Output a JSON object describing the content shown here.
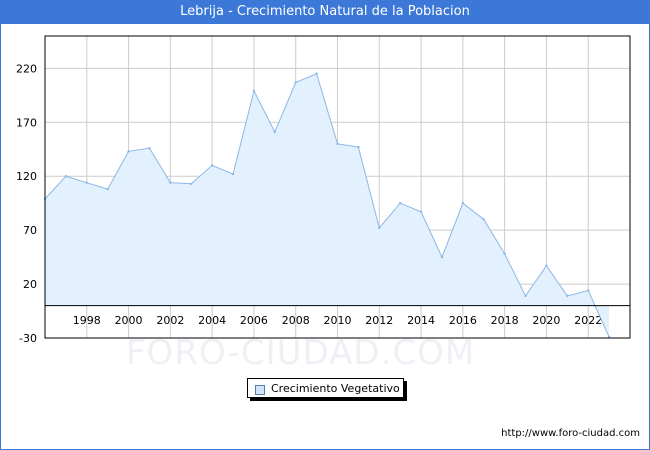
{
  "title": "Lebrija - Crecimiento Natural de la Poblacion",
  "watermark": "FORO-CIUDAD.COM",
  "url": "http://www.foro-ciudad.com",
  "colors": {
    "titlebar": "#3c78d8",
    "line": "#8cb7e8",
    "fill": "#e3f0fd",
    "grid": "#cccccc"
  },
  "chart_data": {
    "type": "area",
    "title": "Lebrija - Crecimiento Natural de la Poblacion",
    "legend": [
      "Crecimiento Vegetativo"
    ],
    "legend_position": "bottom-center",
    "grid": true,
    "ylim": [
      -30,
      250
    ],
    "xlim": [
      1996,
      2024
    ],
    "y_ticks": [
      220,
      170,
      120,
      70,
      20,
      -30
    ],
    "x_ticks": [
      1998,
      2000,
      2002,
      2004,
      2006,
      2008,
      2010,
      2012,
      2014,
      2016,
      2018,
      2020,
      2022
    ],
    "series": [
      {
        "name": "Crecimiento Vegetativo",
        "x": [
          1996,
          1997,
          1998,
          1999,
          2000,
          2001,
          2002,
          2003,
          2004,
          2005,
          2006,
          2007,
          2008,
          2009,
          2010,
          2011,
          2012,
          2013,
          2014,
          2015,
          2016,
          2017,
          2018,
          2019,
          2020,
          2021,
          2022,
          2023
        ],
        "values": [
          99,
          120,
          114,
          108,
          143,
          146,
          114,
          113,
          130,
          122,
          199,
          161,
          207,
          215,
          150,
          147,
          72,
          95,
          87,
          45,
          95,
          80,
          48,
          9,
          37,
          9,
          14,
          -29
        ]
      }
    ]
  },
  "legend_label": "Crecimiento Vegetativo"
}
